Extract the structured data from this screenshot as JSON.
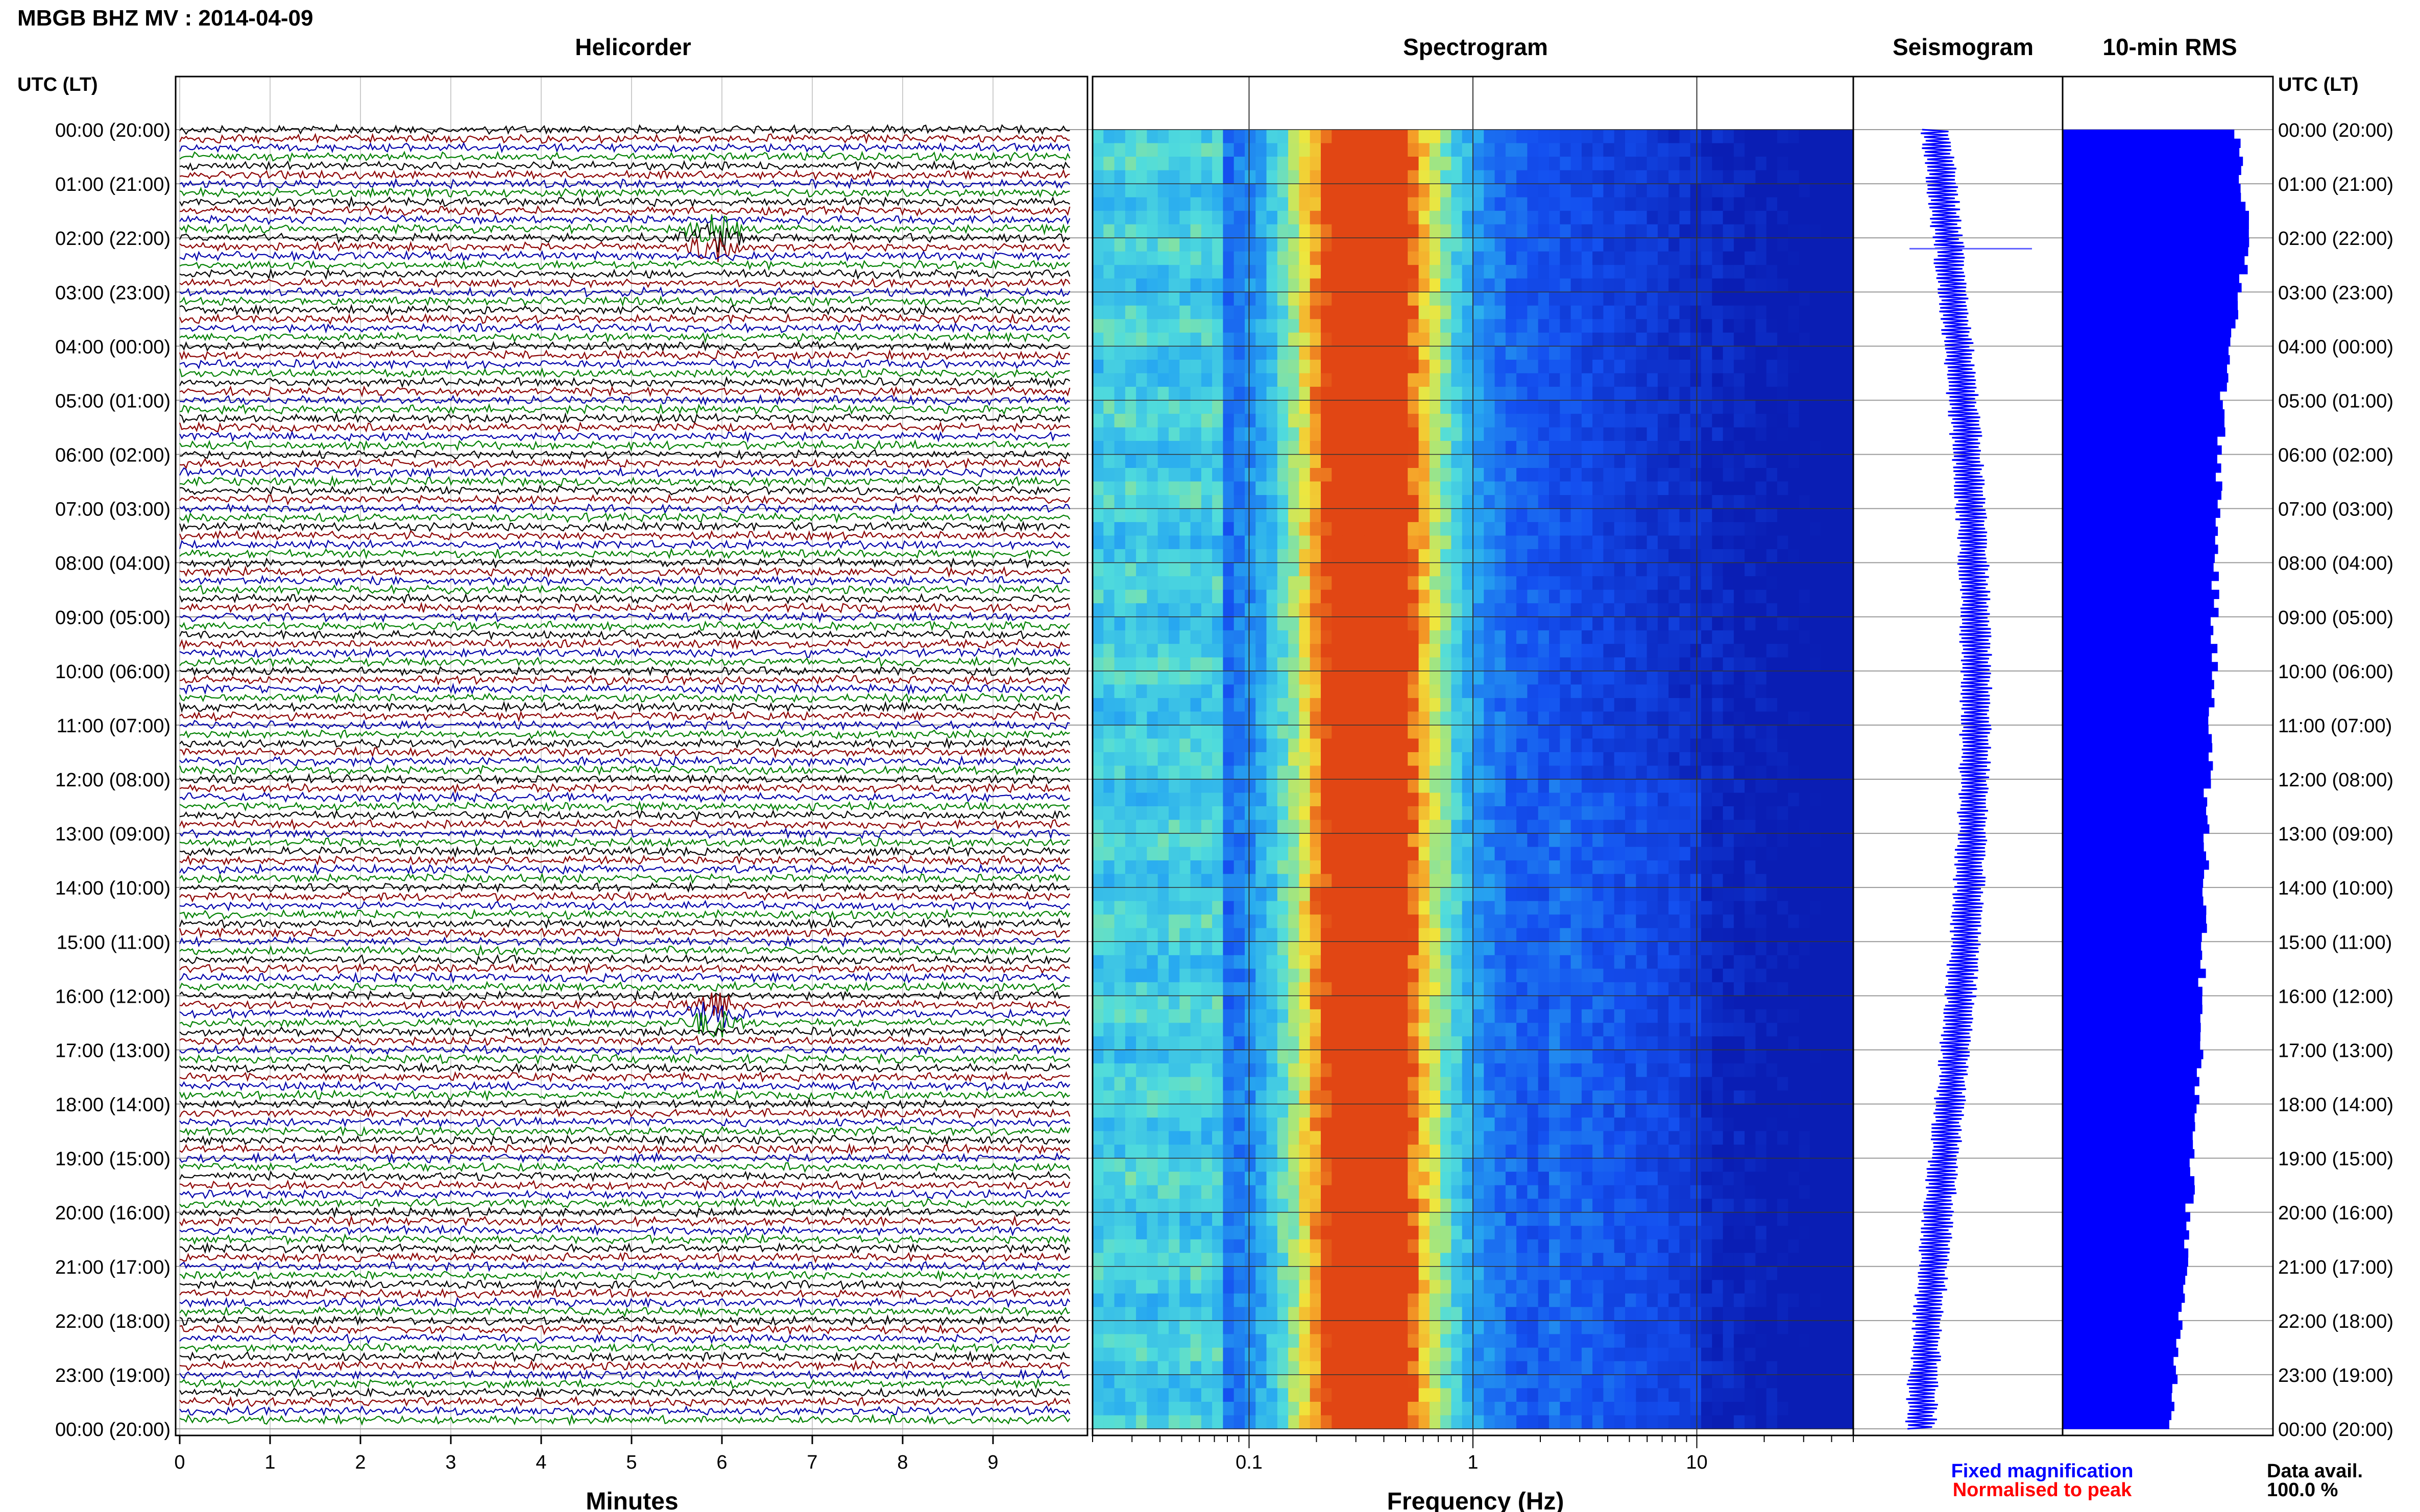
{
  "header": {
    "title": "MBGB BHZ MV : 2014-04-09",
    "utc_label_left": "UTC (LT)",
    "utc_label_right": "UTC (LT)"
  },
  "panels": {
    "helicorder": "Helicorder",
    "spectrogram": "Spectrogram",
    "seismogram": "Seismogram",
    "rms": "10-min RMS"
  },
  "axes": {
    "helicorder_xlabel": "Minutes",
    "spectrogram_xlabel": "Frequency (Hz)"
  },
  "legend": {
    "fixed": "Fixed magnification",
    "normalised": "Normalised to peak",
    "fixed_color": "#0000ff",
    "normalised_color": "#ff0000"
  },
  "data_avail": {
    "label": "Data avail.",
    "value": "100.0 %"
  },
  "colors": {
    "trace_cycle": [
      "#000000",
      "#8b0000",
      "#0000aa",
      "#008000"
    ],
    "seismogram": "#0000ff",
    "rms": "#0000ff",
    "spectrogram_cold": "#1030e0",
    "spectrogram_hot": "#e05000"
  },
  "chart_data": [
    {
      "type": "line",
      "name": "helicorder",
      "title": "Helicorder",
      "xlabel": "Minutes",
      "x_ticks": [
        "0",
        "1",
        "2",
        "3",
        "4",
        "5",
        "6",
        "7",
        "8",
        "9"
      ],
      "xlim": [
        0,
        10
      ],
      "y_tick_labels": [
        "00:00 (20:00)",
        "01:00 (21:00)",
        "02:00 (22:00)",
        "03:00 (23:00)",
        "04:00 (00:00)",
        "05:00 (01:00)",
        "06:00 (02:00)",
        "07:00 (03:00)",
        "08:00 (04:00)",
        "09:00 (05:00)",
        "10:00 (06:00)",
        "11:00 (07:00)",
        "12:00 (08:00)",
        "13:00 (09:00)",
        "14:00 (10:00)",
        "15:00 (11:00)",
        "16:00 (12:00)",
        "17:00 (13:00)",
        "18:00 (14:00)",
        "19:00 (15:00)",
        "20:00 (16:00)",
        "21:00 (17:00)",
        "22:00 (18:00)",
        "23:00 (19:00)",
        "00:00 (20:00)"
      ],
      "traces_per_hour": 6,
      "events": [
        {
          "hour": 2.0,
          "minute": 5.9,
          "color": "#8b0000"
        },
        {
          "hour": 16.3,
          "minute": 5.9,
          "color": "#0000aa"
        }
      ]
    },
    {
      "type": "heatmap",
      "name": "spectrogram",
      "title": "Spectrogram",
      "xlabel": "Frequency (Hz)",
      "x_scale": "log",
      "xlim": [
        0.02,
        50
      ],
      "x_ticks": [
        "0.1",
        "1",
        "10"
      ],
      "peak_band_hz": [
        0.25,
        0.45
      ],
      "noise_band_onset_hour": 12
    },
    {
      "type": "line",
      "name": "seismogram",
      "title": "Seismogram"
    },
    {
      "type": "bar",
      "name": "rms",
      "title": "10-min RMS",
      "xlim": [
        0,
        1
      ],
      "hourly_values": [
        0.82,
        0.86,
        0.88,
        0.84,
        0.8,
        0.76,
        0.75,
        0.74,
        0.73,
        0.72,
        0.72,
        0.71,
        0.69,
        0.68,
        0.68,
        0.67,
        0.66,
        0.65,
        0.64,
        0.62,
        0.6,
        0.59,
        0.56,
        0.54,
        0.52
      ]
    }
  ]
}
